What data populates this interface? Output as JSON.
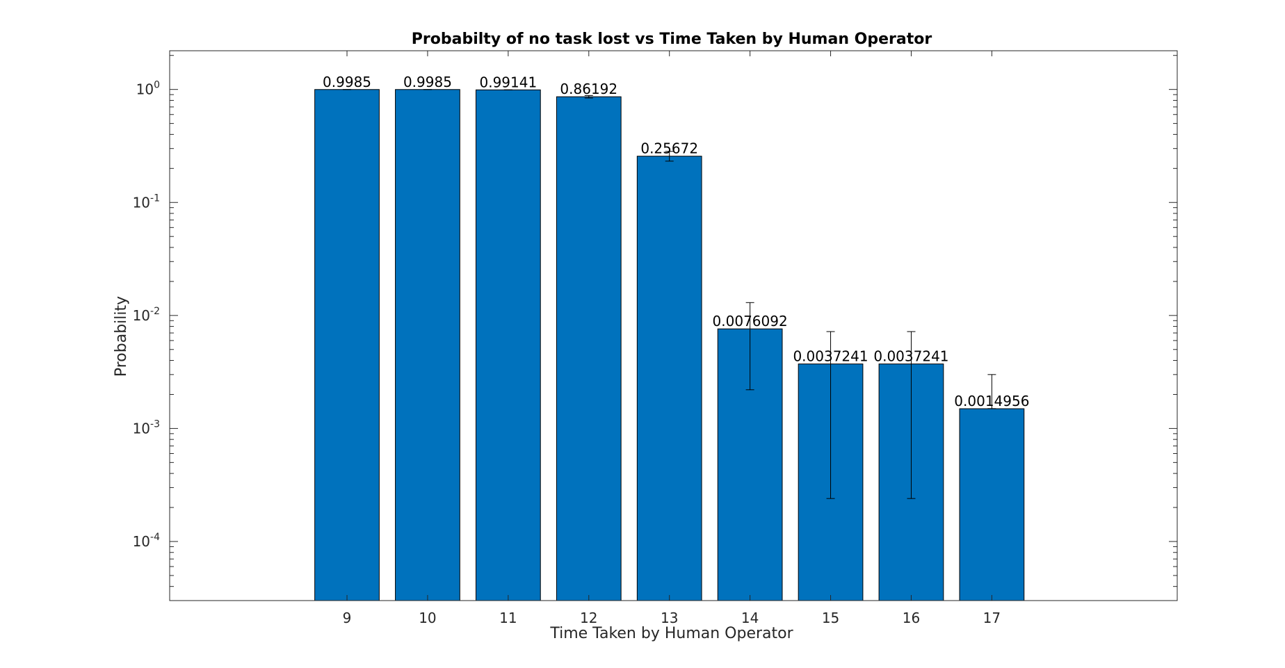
{
  "chart_data": {
    "type": "bar",
    "title": "Probabilty of no task lost vs Time Taken by Human Operator",
    "xlabel": "Time Taken by Human Operator",
    "ylabel": "Probability",
    "y_scale": "log",
    "ylim": [
      3e-05,
      2.2
    ],
    "xlim": [
      6.8,
      19.3
    ],
    "categories": [
      "9",
      "10",
      "11",
      "12",
      "13",
      "14",
      "15",
      "16",
      "17"
    ],
    "x": [
      9,
      10,
      11,
      12,
      13,
      14,
      15,
      16,
      17
    ],
    "values": [
      0.9985,
      0.9985,
      0.99141,
      0.86192,
      0.25672,
      0.0076092,
      0.0037241,
      0.0037241,
      0.0014956
    ],
    "data_labels": [
      "0.9985",
      "0.9985",
      "0.99141",
      "0.86192",
      "0.25672",
      "0.0076092",
      "0.0037241",
      "0.0037241",
      "0.0014956"
    ],
    "error_bars": [
      {
        "low": 0.9985,
        "high": 0.9985
      },
      {
        "low": 0.9985,
        "high": 0.9985
      },
      {
        "low": 0.99141,
        "high": 0.99141
      },
      {
        "low": 0.84,
        "high": 0.884
      },
      {
        "low": 0.232,
        "high": 0.283
      },
      {
        "low": 0.0022,
        "high": 0.013
      },
      {
        "low": 0.00024,
        "high": 0.0072
      },
      {
        "low": 0.00024,
        "high": 0.0072
      },
      {
        "low": 0.0015,
        "high": 0.003
      }
    ],
    "y_ticks": [
      {
        "value": 1,
        "base": "10",
        "exp": "0"
      },
      {
        "value": 0.1,
        "base": "10",
        "exp": "-1"
      },
      {
        "value": 0.01,
        "base": "10",
        "exp": "-2"
      },
      {
        "value": 0.001,
        "base": "10",
        "exp": "-3"
      },
      {
        "value": 0.0001,
        "base": "10",
        "exp": "-4"
      }
    ],
    "grid": false,
    "legend": "none",
    "colors": {
      "bar": "#0072BD",
      "bar_edge": "#000000",
      "axis": "#262626",
      "error_bar": "#000000"
    }
  }
}
